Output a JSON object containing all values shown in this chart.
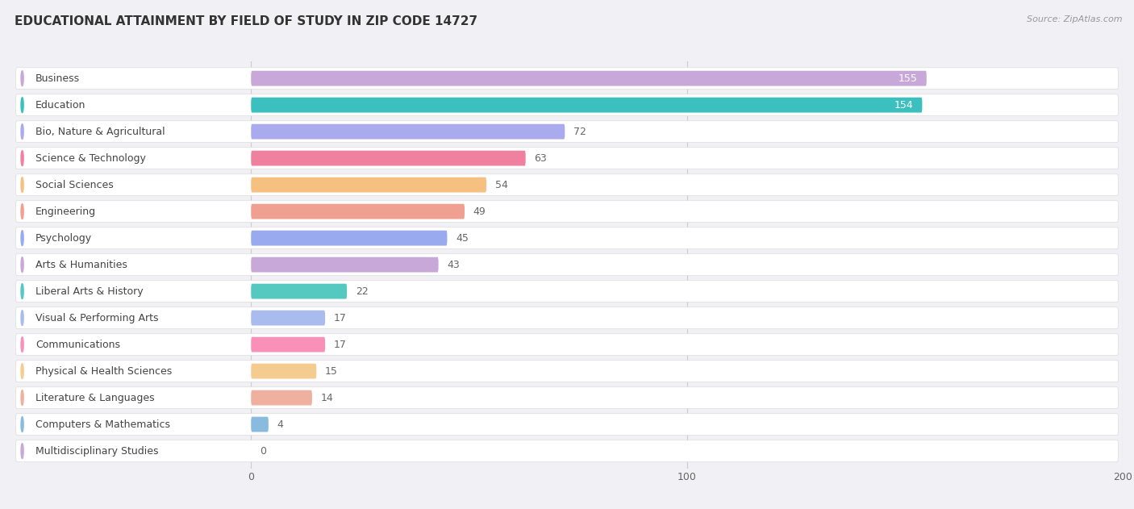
{
  "title": "EDUCATIONAL ATTAINMENT BY FIELD OF STUDY IN ZIP CODE 14727",
  "source": "Source: ZipAtlas.com",
  "categories": [
    "Business",
    "Education",
    "Bio, Nature & Agricultural",
    "Science & Technology",
    "Social Sciences",
    "Engineering",
    "Psychology",
    "Arts & Humanities",
    "Liberal Arts & History",
    "Visual & Performing Arts",
    "Communications",
    "Physical & Health Sciences",
    "Literature & Languages",
    "Computers & Mathematics",
    "Multidisciplinary Studies"
  ],
  "values": [
    155,
    154,
    72,
    63,
    54,
    49,
    45,
    43,
    22,
    17,
    17,
    15,
    14,
    4,
    0
  ],
  "bar_colors": [
    "#c8a8d8",
    "#3bbfbf",
    "#aaaaee",
    "#f080a0",
    "#f5c080",
    "#f0a090",
    "#99aaee",
    "#c8a8d8",
    "#55c8c0",
    "#aabbee",
    "#f890b8",
    "#f5cc90",
    "#f0b0a0",
    "#88bbdd",
    "#c8a8d8"
  ],
  "label_bg_colors": [
    "#c8a8d8",
    "#3bbfbf",
    "#aaaaee",
    "#f080a0",
    "#f5c080",
    "#f0a090",
    "#99aaee",
    "#c8a8d8",
    "#55c8c0",
    "#aabbee",
    "#f890b8",
    "#f5cc90",
    "#f0b0a0",
    "#88bbdd",
    "#c8a8d8"
  ],
  "xlim": [
    0,
    200
  ],
  "xticks": [
    0,
    100,
    200
  ],
  "background_color": "#f0f0f5",
  "row_bg_color": "#ffffff",
  "title_fontsize": 11,
  "label_fontsize": 9,
  "value_fontsize": 9,
  "value_inside_threshold": 154,
  "bar_height": 0.65
}
